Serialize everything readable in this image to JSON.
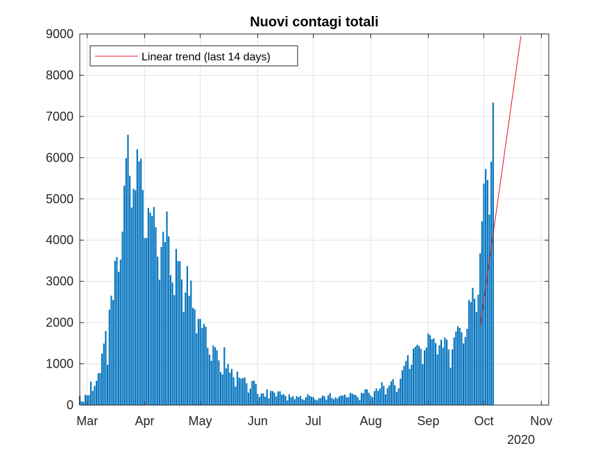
{
  "chart_data": {
    "type": "bar",
    "title": "Nuovi contagi totali",
    "xlabel": "",
    "ylabel": "",
    "year_label": "2020",
    "ylim": [
      0,
      9000
    ],
    "y_ticks": [
      "0",
      "1000",
      "2000",
      "3000",
      "4000",
      "5000",
      "6000",
      "7000",
      "8000",
      "9000"
    ],
    "x_ticks": [
      {
        "label": "Mar",
        "day": 0
      },
      {
        "label": "Apr",
        "day": 31
      },
      {
        "label": "May",
        "day": 61
      },
      {
        "label": "Jun",
        "day": 92
      },
      {
        "label": "Jul",
        "day": 122
      },
      {
        "label": "Aug",
        "day": 153
      },
      {
        "label": "Sep",
        "day": 184
      },
      {
        "label": "Oct",
        "day": 214
      },
      {
        "label": "Nov",
        "day": 245
      }
    ],
    "xlim_days": [
      -4,
      249
    ],
    "grid": true,
    "legend": {
      "position": "top-left",
      "entries": [
        {
          "label": "Linear trend (last 14 days)",
          "color": "#d9151e"
        }
      ]
    },
    "bar_color": "#0072bd",
    "trend_color": "#d9151e",
    "series": [
      {
        "name": "",
        "start_date": "2020-02-25",
        "values": [
          221,
          93,
          78,
          250,
          238,
          240,
          566,
          342,
          466,
          587,
          769,
          778,
          1247,
          1492,
          1797,
          977,
          2313,
          2651,
          2547,
          3497,
          3590,
          3233,
          3526,
          4207,
          5322,
          5986,
          6557,
          5560,
          4789,
          5249,
          5210,
          6203,
          5909,
          5974,
          5217,
          4050,
          4053,
          4782,
          4668,
          4585,
          4805,
          4316,
          3599,
          3039,
          3836,
          4204,
          3951,
          4694,
          4092,
          3153,
          2972,
          2667,
          3786,
          3493,
          3491,
          3047,
          2256,
          2729,
          3370,
          2646,
          3021,
          2357,
          2324,
          1739,
          2091,
          2086,
          1872,
          1965,
          1900,
          1389,
          1221,
          1075,
          1444,
          1402,
          1327,
          1083,
          802,
          744,
          1402,
          888,
          992,
          789,
          875,
          675,
          451,
          813,
          665,
          642,
          652,
          669,
          531,
          300,
          397,
          584,
          593,
          516,
          270,
          197,
          280,
          283,
          202,
          379,
          163,
          346,
          338,
          301,
          210,
          329,
          333,
          251,
          264,
          221,
          113,
          259,
          187,
          218,
          142,
          219,
          192,
          224,
          145,
          123,
          190,
          262,
          223,
          201,
          193,
          138,
          114,
          162,
          169,
          230,
          212,
          129,
          234,
          292,
          173,
          142,
          188,
          159,
          212,
          232,
          230,
          253,
          187,
          193,
          295,
          275,
          255,
          238,
          189,
          124,
          292,
          289,
          386,
          379,
          295,
          230,
          190,
          340,
          403,
          345,
          401,
          552,
          463,
          259,
          412,
          478,
          574,
          629,
          479,
          320,
          403,
          642,
          845,
          953,
          1071,
          1210,
          878,
          977,
          1367,
          1411,
          1460,
          1434,
          1365,
          996,
          1326,
          1397,
          1733,
          1694,
          1597,
          1616,
          1501,
          1229,
          1452,
          1585,
          1392,
          1640,
          1587,
          1350,
          907,
          1350,
          1640,
          1786,
          1912,
          1869,
          1766,
          1494,
          1648,
          1851,
          2548,
          2499,
          2844,
          2578,
          2257,
          2677,
          3678,
          4458,
          5372,
          5724,
          5456,
          4619,
          5901,
          7332
        ]
      }
    ],
    "trend": {
      "name": "Linear trend (last 14 days)",
      "x_days": [
        212,
        234
      ],
      "y": [
        1900,
        8950
      ]
    }
  }
}
